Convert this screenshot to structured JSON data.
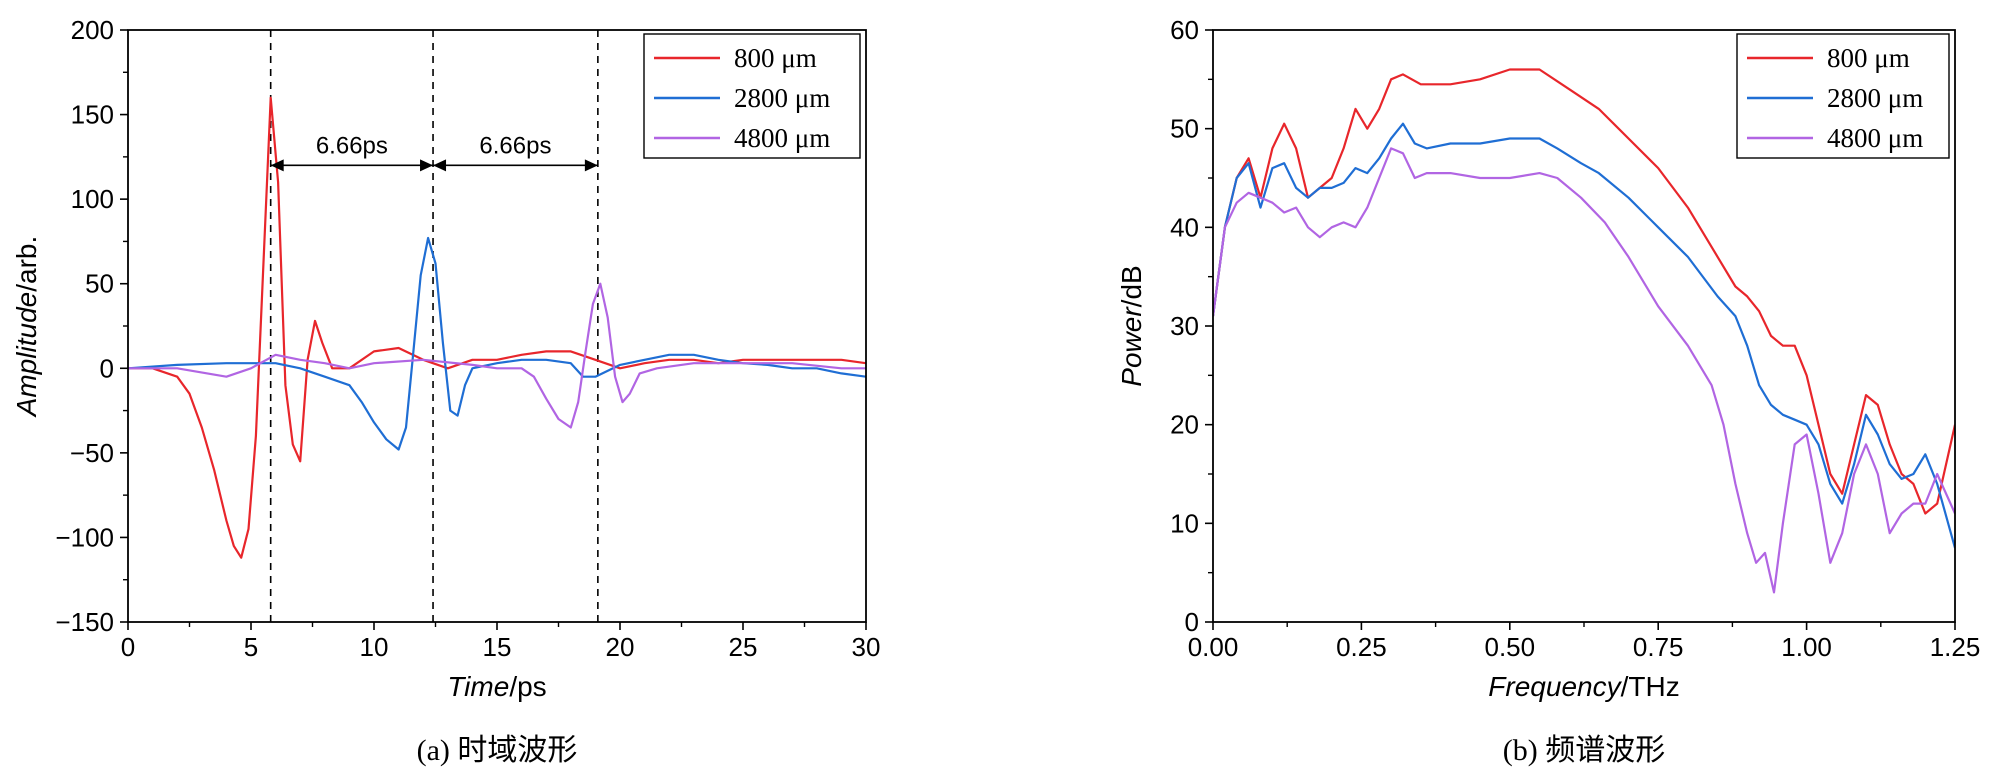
{
  "chart_data": [
    {
      "type": "line",
      "panel": "(a)",
      "xlabel_italic": "Time",
      "xlabel_unit": "/ps",
      "ylabel_italic": "Amplitude",
      "ylabel_unit": "/arb.",
      "xlim": [
        0,
        30
      ],
      "ylim": [
        -150,
        200
      ],
      "xticks": [
        0,
        5,
        10,
        15,
        20,
        25,
        30
      ],
      "yticks": [
        -150,
        -100,
        -50,
        0,
        50,
        100,
        150,
        200
      ],
      "ytick_labels": [
        "−150",
        "−100",
        "−50",
        "0",
        "50",
        "100",
        "150",
        "200"
      ],
      "grid": false,
      "legend_position": "top-right",
      "series": [
        {
          "name": "800 μm",
          "color": "#e8262b",
          "x": [
            0,
            1,
            2,
            2.5,
            3,
            3.5,
            4,
            4.3,
            4.6,
            4.9,
            5.2,
            5.5,
            5.8,
            6.1,
            6.4,
            6.7,
            7.0,
            7.3,
            7.6,
            7.9,
            8.3,
            9,
            10,
            11,
            12,
            13,
            14,
            15,
            16,
            17,
            18,
            19,
            20,
            21,
            22,
            23,
            24,
            25,
            26,
            27,
            28,
            29,
            30
          ],
          "y": [
            0,
            0,
            -5,
            -15,
            -35,
            -60,
            -90,
            -105,
            -112,
            -95,
            -40,
            60,
            160,
            110,
            -10,
            -45,
            -55,
            5,
            28,
            15,
            0,
            0,
            10,
            12,
            5,
            0,
            5,
            5,
            8,
            10,
            10,
            5,
            0,
            3,
            5,
            5,
            3,
            5,
            5,
            5,
            5,
            5,
            3
          ]
        },
        {
          "name": "2800 μm",
          "color": "#1f6ed4",
          "x": [
            0,
            2,
            4,
            6,
            7,
            8,
            9,
            9.5,
            10,
            10.5,
            11,
            11.3,
            11.6,
            11.9,
            12.2,
            12.5,
            12.8,
            13.1,
            13.4,
            13.7,
            14,
            15,
            16,
            17,
            18,
            18.5,
            19,
            20,
            21,
            22,
            23,
            24,
            25,
            26,
            27,
            28,
            29,
            30
          ],
          "y": [
            0,
            2,
            3,
            3,
            0,
            -5,
            -10,
            -20,
            -32,
            -42,
            -48,
            -35,
            10,
            55,
            77,
            62,
            15,
            -25,
            -28,
            -10,
            0,
            3,
            5,
            5,
            3,
            -5,
            -5,
            2,
            5,
            8,
            8,
            5,
            3,
            2,
            0,
            0,
            -3,
            -5
          ]
        },
        {
          "name": "4800 μm",
          "color": "#b165e3",
          "x": [
            0,
            2,
            4,
            5,
            6,
            7,
            8,
            9,
            10,
            12,
            14,
            15,
            16,
            16.5,
            17,
            17.5,
            18,
            18.3,
            18.6,
            18.9,
            19.2,
            19.5,
            19.8,
            20.1,
            20.4,
            20.8,
            21.5,
            23,
            25,
            27,
            29,
            30
          ],
          "y": [
            0,
            0,
            -5,
            0,
            8,
            5,
            3,
            0,
            3,
            5,
            2,
            0,
            0,
            -5,
            -18,
            -30,
            -35,
            -20,
            10,
            38,
            50,
            30,
            -5,
            -20,
            -15,
            -3,
            0,
            3,
            3,
            3,
            0,
            0
          ]
        }
      ],
      "annotations": [
        {
          "text": "6.66ps",
          "x_from": 5.8,
          "x_to": 12.4,
          "y": 120
        },
        {
          "text": "6.66ps",
          "x_from": 12.4,
          "x_to": 19.1,
          "y": 120
        }
      ],
      "vlines": [
        5.8,
        12.4,
        19.1
      ],
      "caption": "(a) 时域波形"
    },
    {
      "type": "line",
      "panel": "(b)",
      "xlabel_italic": "Frequency",
      "xlabel_unit": "/THz",
      "ylabel_italic": "Power",
      "ylabel_unit": "/dB",
      "xlim": [
        0,
        1.25
      ],
      "ylim": [
        0,
        60
      ],
      "xticks": [
        0.0,
        0.25,
        0.5,
        0.75,
        1.0,
        1.25
      ],
      "xtick_labels": [
        "0.00",
        "0.25",
        "0.50",
        "0.75",
        "1.00",
        "1.25"
      ],
      "yticks": [
        0,
        10,
        20,
        30,
        40,
        50,
        60
      ],
      "grid": false,
      "legend_position": "top-right",
      "series": [
        {
          "name": "800 μm",
          "color": "#e8262b",
          "x": [
            0,
            0.02,
            0.04,
            0.06,
            0.08,
            0.1,
            0.12,
            0.14,
            0.16,
            0.18,
            0.2,
            0.22,
            0.24,
            0.26,
            0.28,
            0.3,
            0.32,
            0.35,
            0.4,
            0.45,
            0.5,
            0.55,
            0.6,
            0.65,
            0.7,
            0.75,
            0.8,
            0.85,
            0.88,
            0.9,
            0.92,
            0.94,
            0.96,
            0.98,
            1.0,
            1.02,
            1.04,
            1.06,
            1.08,
            1.1,
            1.12,
            1.14,
            1.16,
            1.18,
            1.2,
            1.22,
            1.25
          ],
          "y": [
            31,
            40,
            45,
            47,
            43,
            48,
            50.5,
            48,
            43,
            44,
            45,
            48,
            52,
            50,
            52,
            55,
            55.5,
            54.5,
            54.5,
            55,
            56,
            56,
            54,
            52,
            49,
            46,
            42,
            37,
            34,
            33,
            31.5,
            29,
            28,
            28,
            25,
            20,
            15,
            13,
            18,
            23,
            22,
            18,
            15,
            14,
            11,
            12,
            20
          ]
        },
        {
          "name": "2800 μm",
          "color": "#1f6ed4",
          "x": [
            0,
            0.02,
            0.04,
            0.06,
            0.08,
            0.1,
            0.12,
            0.14,
            0.16,
            0.18,
            0.2,
            0.22,
            0.24,
            0.26,
            0.28,
            0.3,
            0.32,
            0.34,
            0.36,
            0.4,
            0.45,
            0.5,
            0.55,
            0.58,
            0.62,
            0.65,
            0.7,
            0.75,
            0.8,
            0.85,
            0.88,
            0.9,
            0.92,
            0.94,
            0.96,
            0.98,
            1.0,
            1.02,
            1.04,
            1.06,
            1.08,
            1.1,
            1.12,
            1.14,
            1.16,
            1.18,
            1.2,
            1.22,
            1.25
          ],
          "y": [
            31,
            40,
            45,
            46.5,
            42,
            46,
            46.5,
            44,
            43,
            44,
            44,
            44.5,
            46,
            45.5,
            47,
            49,
            50.5,
            48.5,
            48,
            48.5,
            48.5,
            49,
            49,
            48,
            46.5,
            45.5,
            43,
            40,
            37,
            33,
            31,
            28,
            24,
            22,
            21,
            20.5,
            20,
            18,
            14,
            12,
            16,
            21,
            19,
            16,
            14.5,
            15,
            17,
            14,
            7.5
          ]
        },
        {
          "name": "4800 μm",
          "color": "#b165e3",
          "x": [
            0,
            0.02,
            0.04,
            0.06,
            0.08,
            0.1,
            0.12,
            0.14,
            0.16,
            0.18,
            0.2,
            0.22,
            0.24,
            0.26,
            0.28,
            0.3,
            0.32,
            0.34,
            0.36,
            0.4,
            0.45,
            0.5,
            0.55,
            0.58,
            0.62,
            0.66,
            0.7,
            0.75,
            0.8,
            0.84,
            0.86,
            0.88,
            0.9,
            0.915,
            0.93,
            0.945,
            0.96,
            0.98,
            1.0,
            1.02,
            1.04,
            1.06,
            1.08,
            1.1,
            1.12,
            1.14,
            1.16,
            1.18,
            1.2,
            1.22,
            1.25
          ],
          "y": [
            31,
            40,
            42.5,
            43.5,
            43,
            42.5,
            41.5,
            42,
            40,
            39,
            40,
            40.5,
            40,
            42,
            45,
            48,
            47.5,
            45,
            45.5,
            45.5,
            45,
            45,
            45.5,
            45,
            43,
            40.5,
            37,
            32,
            28,
            24,
            20,
            14,
            9,
            6,
            7,
            3,
            10,
            18,
            19,
            13,
            6,
            9,
            15,
            18,
            15,
            9,
            11,
            12,
            12,
            15,
            11
          ]
        }
      ],
      "caption": "(b) 频谱波形"
    }
  ]
}
